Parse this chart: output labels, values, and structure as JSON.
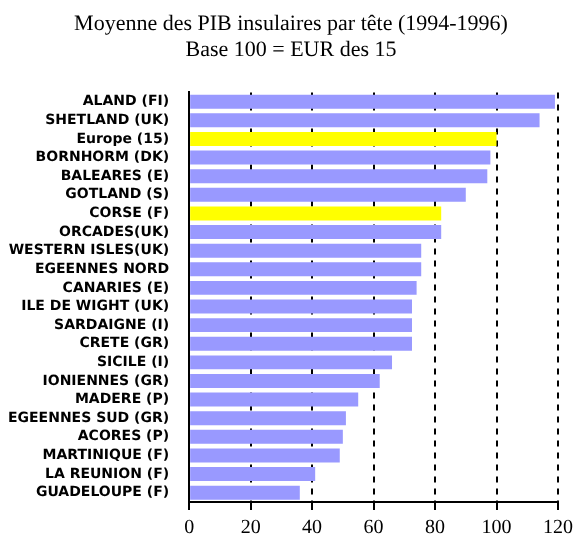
{
  "chart_data": {
    "type": "bar",
    "orientation": "horizontal",
    "title": "Moyenne des PIB insulaires par tête (1994-1996)",
    "subtitle": "Base 100 = EUR des 15",
    "categories": [
      "ALAND (FI)",
      "SHETLAND (UK)",
      "Europe (15)",
      "BORNHORM (DK)",
      "BALEARES (E)",
      "GOTLAND (S)",
      "CORSE (F)",
      "ORCADES(UK)",
      "WESTERN ISLES(UK)",
      "EGEENNES NORD",
      "CANARIES (E)",
      "ILE DE WIGHT (UK)",
      "SARDAIGNE (I)",
      "CRETE (GR)",
      "SICILE (I)",
      "IONIENNES (GR)",
      "MADERE (P)",
      "EGEENNES SUD (GR)",
      "ACORES (P)",
      "MARTINIQUE (F)",
      "LA REUNION (F)",
      "GUADELOUPE (F)"
    ],
    "values": [
      119,
      114,
      100,
      98,
      97,
      90,
      82,
      82,
      75.5,
      75.5,
      74,
      72.5,
      72.5,
      72.5,
      66,
      62,
      55,
      51,
      50,
      49,
      41,
      36
    ],
    "colors": [
      "#9999ff",
      "#9999ff",
      "#ffff00",
      "#9999ff",
      "#9999ff",
      "#9999ff",
      "#ffff00",
      "#9999ff",
      "#9999ff",
      "#9999ff",
      "#9999ff",
      "#9999ff",
      "#9999ff",
      "#9999ff",
      "#9999ff",
      "#9999ff",
      "#9999ff",
      "#9999ff",
      "#9999ff",
      "#9999ff",
      "#9999ff",
      "#9999ff"
    ],
    "xlim": [
      0,
      120
    ],
    "xticks": [
      0,
      20,
      40,
      60,
      80,
      100,
      120
    ],
    "grid": "x",
    "legend": false
  }
}
